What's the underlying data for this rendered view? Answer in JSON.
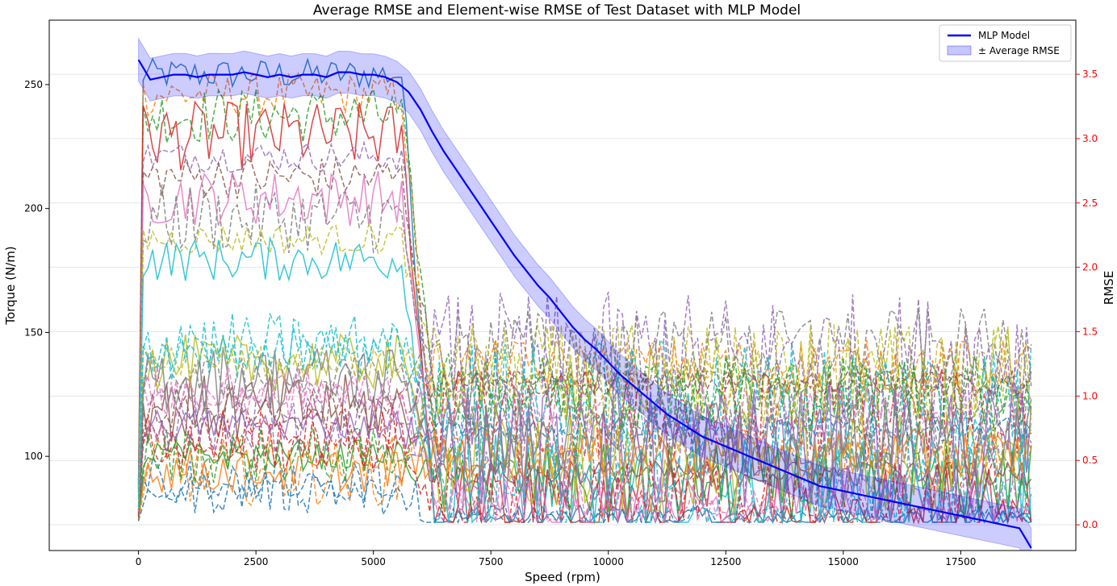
{
  "chart_data": {
    "type": "line",
    "title": "Average RMSE and Element-wise RMSE of Test Dataset with MLP Model",
    "xlabel": "Speed (rpm)",
    "ylabel": "Torque (N/m)",
    "ylabel_right": "RMSE",
    "xlim": [
      -1900,
      19950
    ],
    "ylim": [
      62,
      276
    ],
    "ylim_right": [
      -0.2,
      3.92
    ],
    "x_ticks": [
      0,
      2500,
      5000,
      7500,
      10000,
      12500,
      15000,
      17500
    ],
    "x_tick_labels": [
      "0",
      "2500",
      "5000",
      "7500",
      "10000",
      "12500",
      "15000",
      "17500"
    ],
    "y_ticks": [
      100,
      150,
      200,
      250
    ],
    "y_tick_labels": [
      "100",
      "150",
      "200",
      "250"
    ],
    "y_right_ticks": [
      0.0,
      0.5,
      1.0,
      1.5,
      2.0,
      2.5,
      3.0,
      3.5
    ],
    "y_right_tick_labels": [
      "0.0",
      "0.5",
      "1.0",
      "1.5",
      "2.0",
      "2.5",
      "3.0",
      "3.5"
    ],
    "right_axis_color": "#ff0000",
    "grid": "horizontal, right axis",
    "legend_position": "top-right",
    "main_series": {
      "name": "MLP Model",
      "color": "#0000ff",
      "x": [
        0,
        250,
        500,
        750,
        1000,
        1250,
        1500,
        1750,
        2000,
        2250,
        2500,
        2750,
        3000,
        3250,
        3500,
        3750,
        4000,
        4250,
        4500,
        4750,
        5000,
        5250,
        5500,
        5750,
        6000,
        6250,
        6500,
        6750,
        7000,
        7250,
        7500,
        7750,
        8000,
        8250,
        8500,
        8750,
        9000,
        9250,
        9500,
        9750,
        10000,
        10250,
        10500,
        10750,
        11000,
        11250,
        11500,
        11750,
        12000,
        12250,
        12500,
        12750,
        13000,
        13250,
        13500,
        13750,
        14000,
        14250,
        14500,
        14750,
        15000,
        15250,
        15500,
        15750,
        16000,
        16250,
        16500,
        16750,
        17000,
        17250,
        17500,
        17750,
        18000,
        18250,
        18500,
        18750,
        19000
      ],
      "values": [
        260,
        252,
        253,
        254,
        254,
        253,
        254,
        254,
        254,
        255,
        254,
        253,
        254,
        253,
        254,
        254,
        253,
        255,
        255,
        254,
        254,
        253,
        251,
        247,
        240,
        231,
        223,
        216,
        209,
        202,
        195,
        188,
        181,
        175,
        169,
        164,
        158,
        152,
        147,
        143,
        138,
        133,
        129,
        125,
        121,
        117,
        114,
        111,
        108,
        106,
        104,
        102,
        100,
        98,
        96,
        94,
        92,
        90,
        88,
        87,
        86,
        85,
        84,
        83,
        82,
        81,
        80,
        79,
        78,
        77,
        76,
        75,
        74,
        73,
        72,
        71,
        63
      ]
    },
    "band": {
      "name": "± Average RMSE",
      "color": "#0000ff",
      "halfwidth_left": 8.6,
      "halfwidth_right": 8.0
    },
    "elementwise_series": {
      "axis": "right",
      "style": "dashed and solid, tab10 palette",
      "count": 30,
      "x_range": [
        0,
        19000
      ],
      "y_range": [
        0.0,
        3.7
      ]
    }
  },
  "legend": {
    "entries": [
      "MLP Model",
      "± Average RMSE"
    ]
  }
}
